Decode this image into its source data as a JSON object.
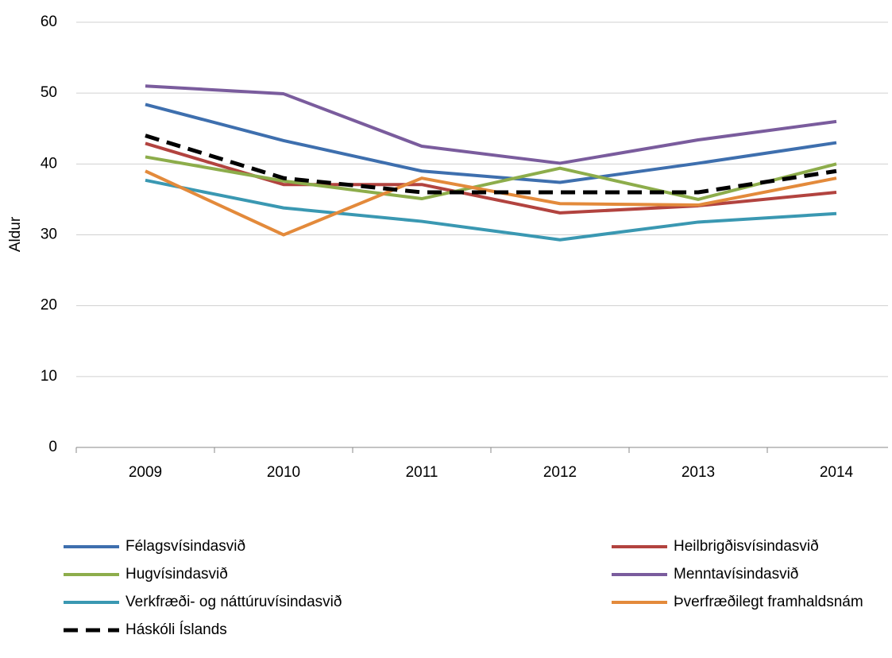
{
  "chart_data": {
    "type": "line",
    "y_label": "Aldur",
    "categories": [
      "2009",
      "2010",
      "2011",
      "2012",
      "2013",
      "2014"
    ],
    "ylim": [
      0,
      60
    ],
    "yticks": [
      0,
      10,
      20,
      30,
      40,
      50,
      60
    ],
    "grid": true,
    "legend": "bottom",
    "series": [
      {
        "name": "Félagsvísindasvið",
        "color": "#3e6fae",
        "values": [
          48.4,
          43.3,
          39,
          37.4,
          40.1,
          43
        ]
      },
      {
        "name": "Heilbrigðisvísindasvið",
        "color": "#b2433f",
        "values": [
          42.9,
          37.1,
          37.1,
          33.1,
          34.1,
          36
        ]
      },
      {
        "name": "Hugvísindasvið",
        "color": "#8dad4b",
        "values": [
          41,
          37.6,
          35.1,
          39.4,
          35,
          40
        ]
      },
      {
        "name": "Menntavísindasvið",
        "color": "#7a5c9d",
        "values": [
          51,
          49.9,
          42.5,
          40.1,
          43.4,
          46
        ]
      },
      {
        "name": "Verkfræði- og náttúruvísindasvið",
        "color": "#3a98b2",
        "values": [
          37.7,
          33.8,
          31.9,
          29.3,
          31.8,
          33
        ]
      },
      {
        "name": "Þverfræðilegt framhaldsnám",
        "color": "#e38a3b",
        "values": [
          39,
          30,
          38,
          34.4,
          34.2,
          38
        ]
      },
      {
        "name": "Háskóli Íslands",
        "color": "#000000",
        "dashed": true,
        "values": [
          44,
          38,
          36,
          36,
          36,
          39
        ]
      }
    ]
  }
}
